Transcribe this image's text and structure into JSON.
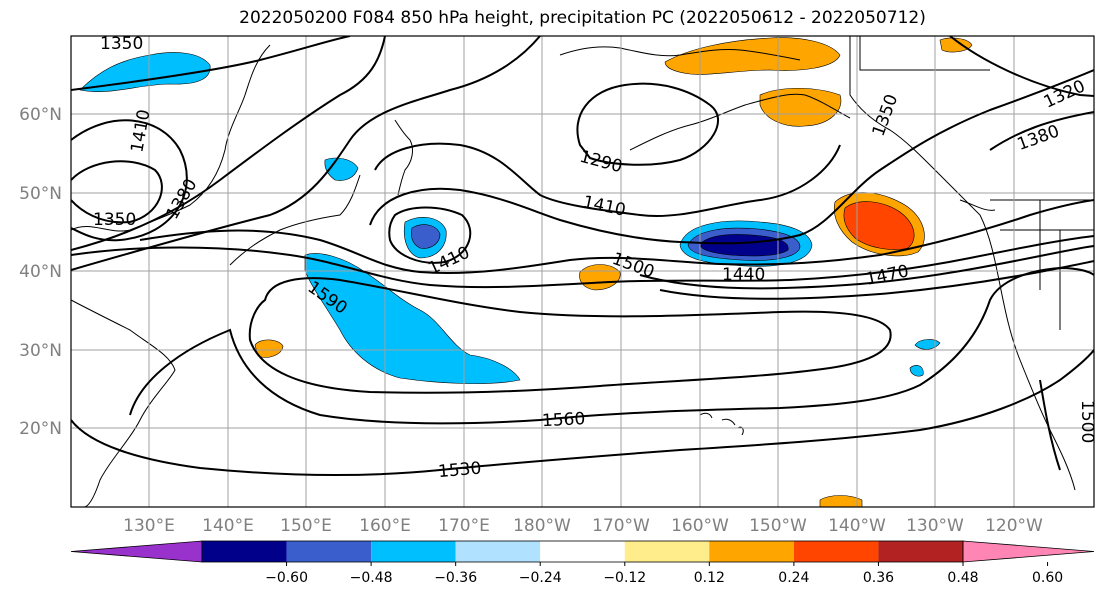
{
  "title": "2022050200 F084 850 hPa height, precipitation PC (2022050612 - 2022050712)",
  "lat_labels": [
    "60°N",
    "50°N",
    "40°N",
    "30°N",
    "20°N"
  ],
  "lon_labels": [
    "130°E",
    "140°E",
    "150°E",
    "160°E",
    "170°E",
    "180°W",
    "170°W",
    "160°W",
    "150°W",
    "140°W",
    "130°W",
    "120°W"
  ],
  "contour_labels": [
    "1350",
    "1410",
    "1380",
    "1350",
    "1290",
    "1350",
    "1320",
    "1380",
    "1410",
    "1410",
    "1500",
    "1440",
    "1470",
    "1590",
    "1560",
    "1530",
    "1500"
  ],
  "colorbar": {
    "ticks": [
      "−0.60",
      "−0.48",
      "−0.36",
      "−0.24",
      "−0.12",
      "0.12",
      "0.24",
      "0.36",
      "0.48",
      "0.60"
    ],
    "colors": [
      "#9932cc",
      "#00008b",
      "#3a5fcd",
      "#00bfff",
      "#b0e2ff",
      "#ffffff",
      "#ffec8b",
      "#ffa500",
      "#ff4500",
      "#b22222",
      "#ff86b4"
    ]
  }
}
